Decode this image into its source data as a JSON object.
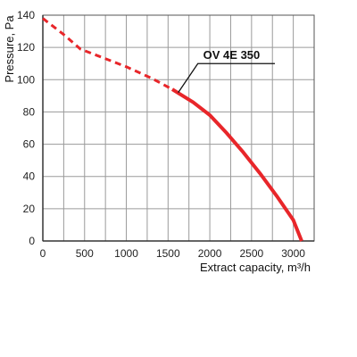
{
  "chart_data": {
    "type": "line",
    "xlabel": "Extract capacity, m³/h",
    "ylabel": "Pressure, Pa",
    "xlim": [
      0,
      3250
    ],
    "ylim": [
      0,
      140
    ],
    "x_ticks": [
      "0",
      "500",
      "1000",
      "1500",
      "2000",
      "2500",
      "3000"
    ],
    "y_ticks": [
      "0",
      "20",
      "40",
      "60",
      "80",
      "100",
      "120",
      "140"
    ],
    "grid": true,
    "colors": {
      "curve": "#e8262a",
      "grid": "#9a9a9a",
      "axis": "#555555"
    },
    "series": [
      {
        "name": "OV 4E 350",
        "segments": [
          {
            "style": "dashed",
            "points": [
              [
                0,
                138
              ],
              [
                250,
                128
              ],
              [
                450,
                119
              ],
              [
                700,
                114
              ],
              [
                1000,
                108
              ],
              [
                1300,
                101
              ],
              [
                1550,
                94
              ]
            ]
          },
          {
            "style": "solid",
            "points": [
              [
                1550,
                94
              ],
              [
                1800,
                86
              ],
              [
                2000,
                78
              ],
              [
                2200,
                67
              ],
              [
                2400,
                55
              ],
              [
                2600,
                42
              ],
              [
                2800,
                28
              ],
              [
                3000,
                13
              ],
              [
                3100,
                0
              ]
            ]
          }
        ]
      }
    ],
    "annotations": [
      {
        "text": "OV 4E 350",
        "target": [
          1600,
          92
        ]
      }
    ]
  }
}
